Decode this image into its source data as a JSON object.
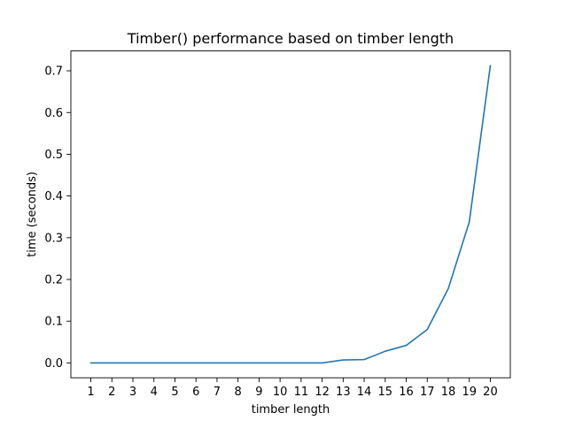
{
  "chart_data": {
    "type": "line",
    "title": "Timber() performance based on timber length",
    "xlabel": "timber length",
    "ylabel": "time (seconds)",
    "x": [
      1,
      2,
      3,
      4,
      5,
      6,
      7,
      8,
      9,
      10,
      11,
      12,
      13,
      14,
      15,
      16,
      17,
      18,
      19,
      20
    ],
    "series": [
      {
        "values": [
          0.0,
          0.0,
          0.0,
          0.0,
          0.0,
          0.0,
          0.0,
          0.0,
          0.0,
          0.0,
          0.0,
          0.0,
          0.007,
          0.008,
          0.028,
          0.042,
          0.08,
          0.178,
          0.338,
          0.712
        ],
        "color": "#1f77b4"
      }
    ],
    "xticks": [
      1,
      2,
      3,
      4,
      5,
      6,
      7,
      8,
      9,
      10,
      11,
      12,
      13,
      14,
      15,
      16,
      17,
      18,
      19,
      20
    ],
    "xtick_labels": [
      "1",
      "2",
      "3",
      "4",
      "5",
      "6",
      "7",
      "8",
      "9",
      "10",
      "11",
      "12",
      "13",
      "14",
      "15",
      "16",
      "17",
      "18",
      "19",
      "20"
    ],
    "yticks": [
      0.0,
      0.1,
      0.2,
      0.3,
      0.4,
      0.5,
      0.6,
      0.7
    ],
    "ytick_labels": [
      "0.0",
      "0.1",
      "0.2",
      "0.3",
      "0.4",
      "0.5",
      "0.6",
      "0.7"
    ],
    "xlim": [
      0.05,
      20.95
    ],
    "ylim": [
      -0.0356,
      0.7476
    ],
    "grid": false,
    "legend": "none"
  }
}
